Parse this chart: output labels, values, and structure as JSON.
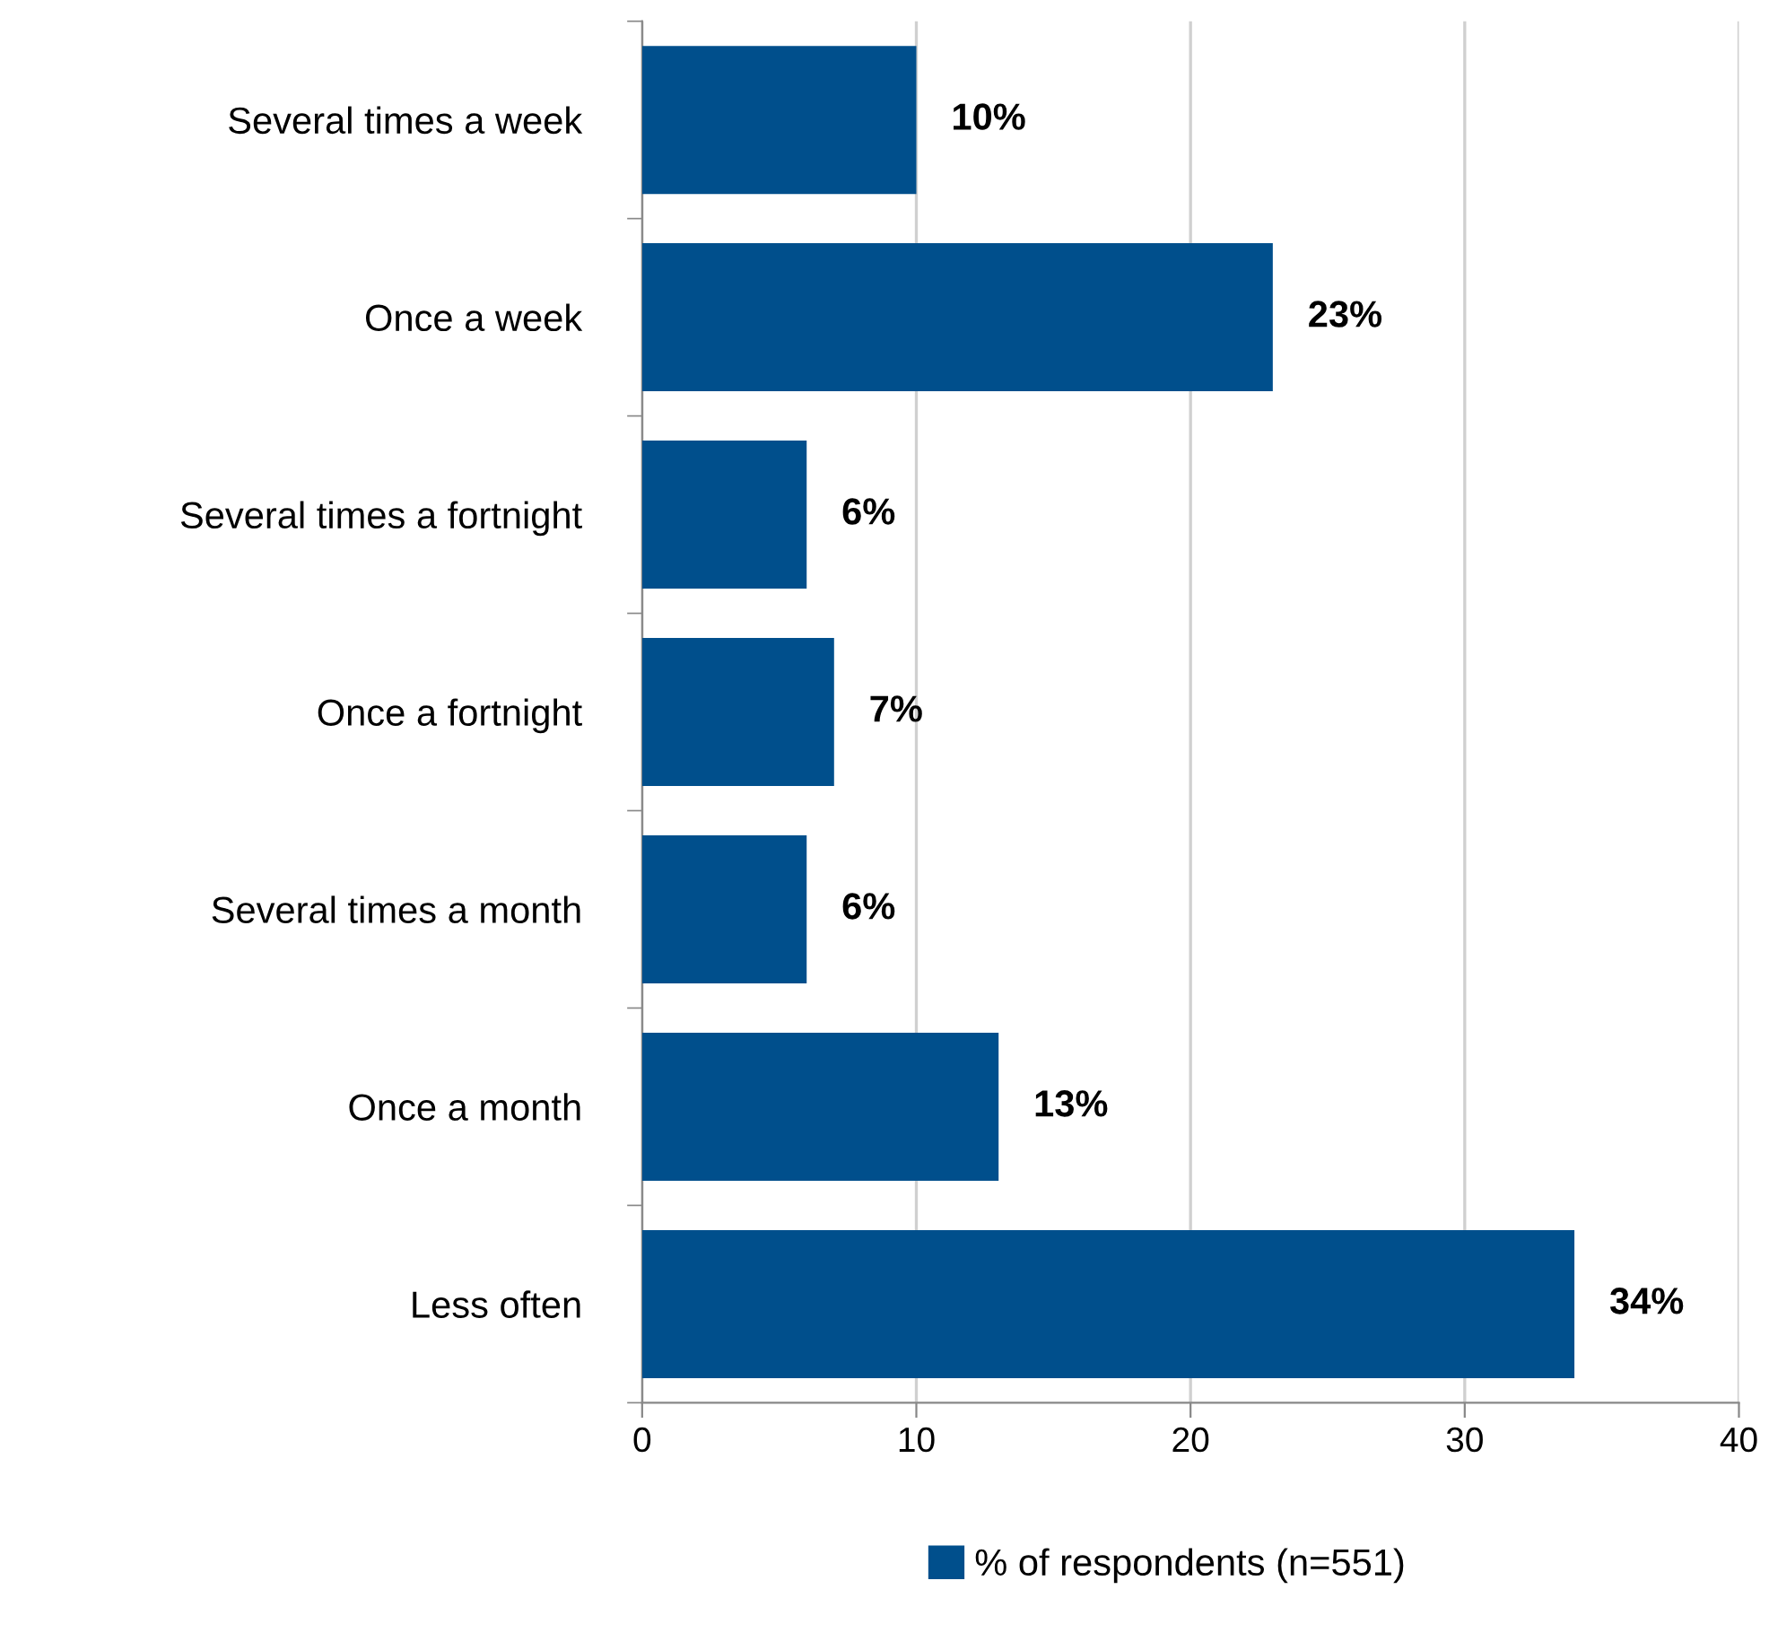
{
  "chart_data": {
    "type": "bar",
    "orientation": "horizontal",
    "categories": [
      "Several times a week",
      "Once a week",
      "Several times a fortnight",
      "Once a fortnight",
      "Several times a month",
      "Once a month",
      "Less often"
    ],
    "series": [
      {
        "name": "% of respondents (n=551)",
        "color": "#004f8c",
        "values": [
          10,
          23,
          6,
          7,
          6,
          13,
          34
        ],
        "value_labels": [
          "10%",
          "23%",
          "6%",
          "7%",
          "6%",
          "13%",
          "34%"
        ]
      }
    ],
    "xlim": [
      0,
      40
    ],
    "xticks": [
      0,
      10,
      20,
      30,
      40
    ],
    "grid": "x",
    "legend": "bottom"
  }
}
